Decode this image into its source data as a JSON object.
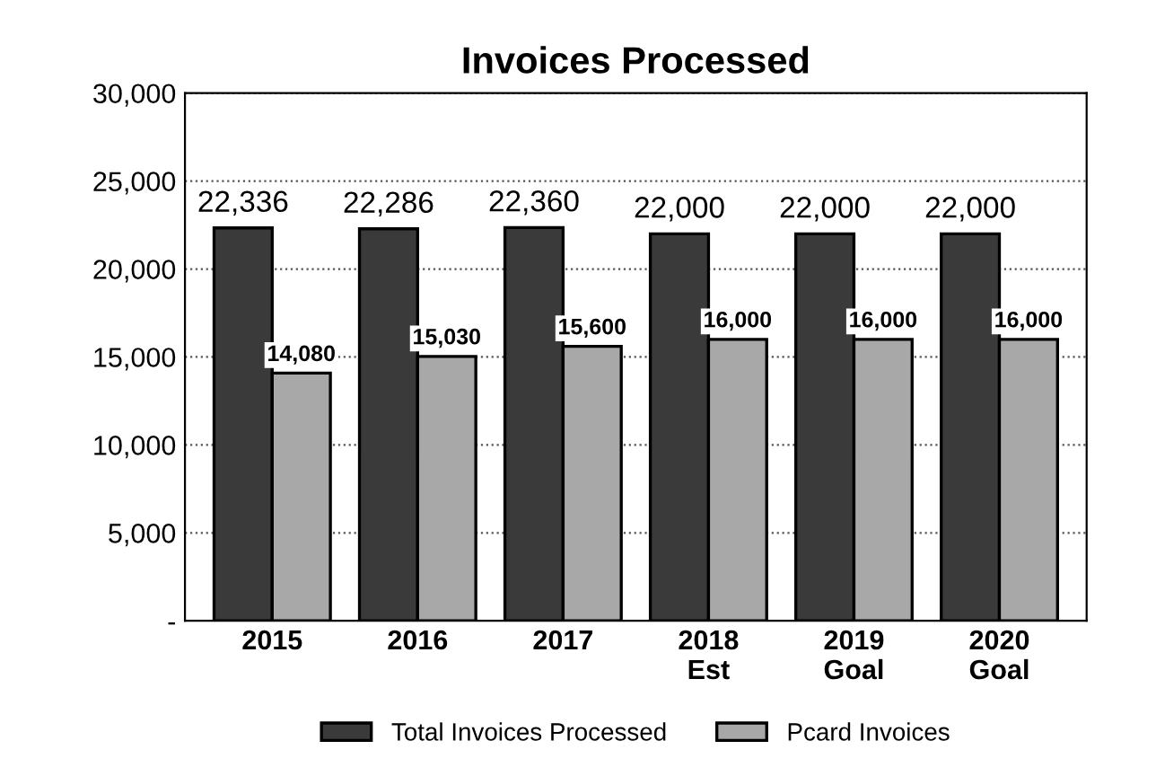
{
  "chart_data": {
    "type": "bar",
    "title": "Invoices Processed",
    "categories": [
      "2015",
      "2016",
      "2017",
      "2018\nEst",
      "2019\nGoal",
      "2020\nGoal"
    ],
    "series": [
      {
        "name": "Total Invoices Processed",
        "color": "#3a3a3a",
        "values": [
          22336,
          22286,
          22360,
          22000,
          22000,
          22000
        ],
        "value_labels": [
          "22,336",
          "22,286",
          "22,360",
          "22,000",
          "22,000",
          "22,000"
        ]
      },
      {
        "name": "Pcard Invoices",
        "color": "#a8a8a8",
        "values": [
          14080,
          15030,
          15600,
          16000,
          16000,
          16000
        ],
        "value_labels": [
          "14,080",
          "15,030",
          "15,600",
          "16,000",
          "16,000",
          "16,000"
        ]
      }
    ],
    "ylim": [
      0,
      30000
    ],
    "yticks": [
      {
        "value": 0,
        "label": "-"
      },
      {
        "value": 5000,
        "label": "5,000"
      },
      {
        "value": 10000,
        "label": "10,000"
      },
      {
        "value": 15000,
        "label": "15,000"
      },
      {
        "value": 20000,
        "label": "20,000"
      },
      {
        "value": 25000,
        "label": "25,000"
      },
      {
        "value": 30000,
        "label": "30,000"
      }
    ],
    "grid": "y",
    "legend": "bottom"
  }
}
